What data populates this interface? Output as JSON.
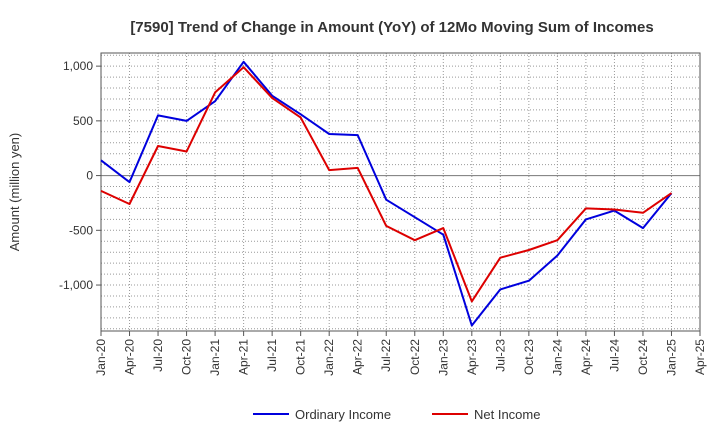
{
  "chart_data": {
    "type": "line",
    "title": "[7590]  Trend of Change in Amount (YoY) of 12Mo Moving Sum of Incomes",
    "xlabel": "",
    "ylabel": "Amount (million yen)",
    "x": [
      "Jan-20",
      "Apr-20",
      "Jul-20",
      "Oct-20",
      "Jan-21",
      "Apr-21",
      "Jul-21",
      "Oct-21",
      "Jan-22",
      "Apr-22",
      "Jul-22",
      "Oct-22",
      "Jan-23",
      "Apr-23",
      "Jul-23",
      "Oct-23",
      "Jan-24",
      "Apr-24",
      "Jul-24",
      "Oct-24",
      "Jan-25",
      "Apr-25"
    ],
    "ylim": [
      -1420,
      1120
    ],
    "yticks": [
      -1000,
      -500,
      0,
      500,
      1000
    ],
    "ytick_labels": [
      "-1,000",
      "-500",
      "0",
      "500",
      "1,000"
    ],
    "grid": true,
    "legend_position": "bottom",
    "series": [
      {
        "name": "Ordinary Income",
        "color": "#0000dd",
        "values": [
          140,
          -60,
          550,
          500,
          680,
          1040,
          730,
          560,
          380,
          370,
          -220,
          -380,
          -540,
          -1370,
          -1040,
          -960,
          -730,
          -400,
          -320,
          -480,
          -160,
          null
        ]
      },
      {
        "name": "Net Income",
        "color": "#dd0000",
        "values": [
          -140,
          -260,
          270,
          220,
          760,
          990,
          710,
          530,
          50,
          70,
          -460,
          -590,
          -480,
          -1150,
          -750,
          -680,
          -590,
          -300,
          -310,
          -340,
          -160,
          null
        ]
      }
    ]
  }
}
